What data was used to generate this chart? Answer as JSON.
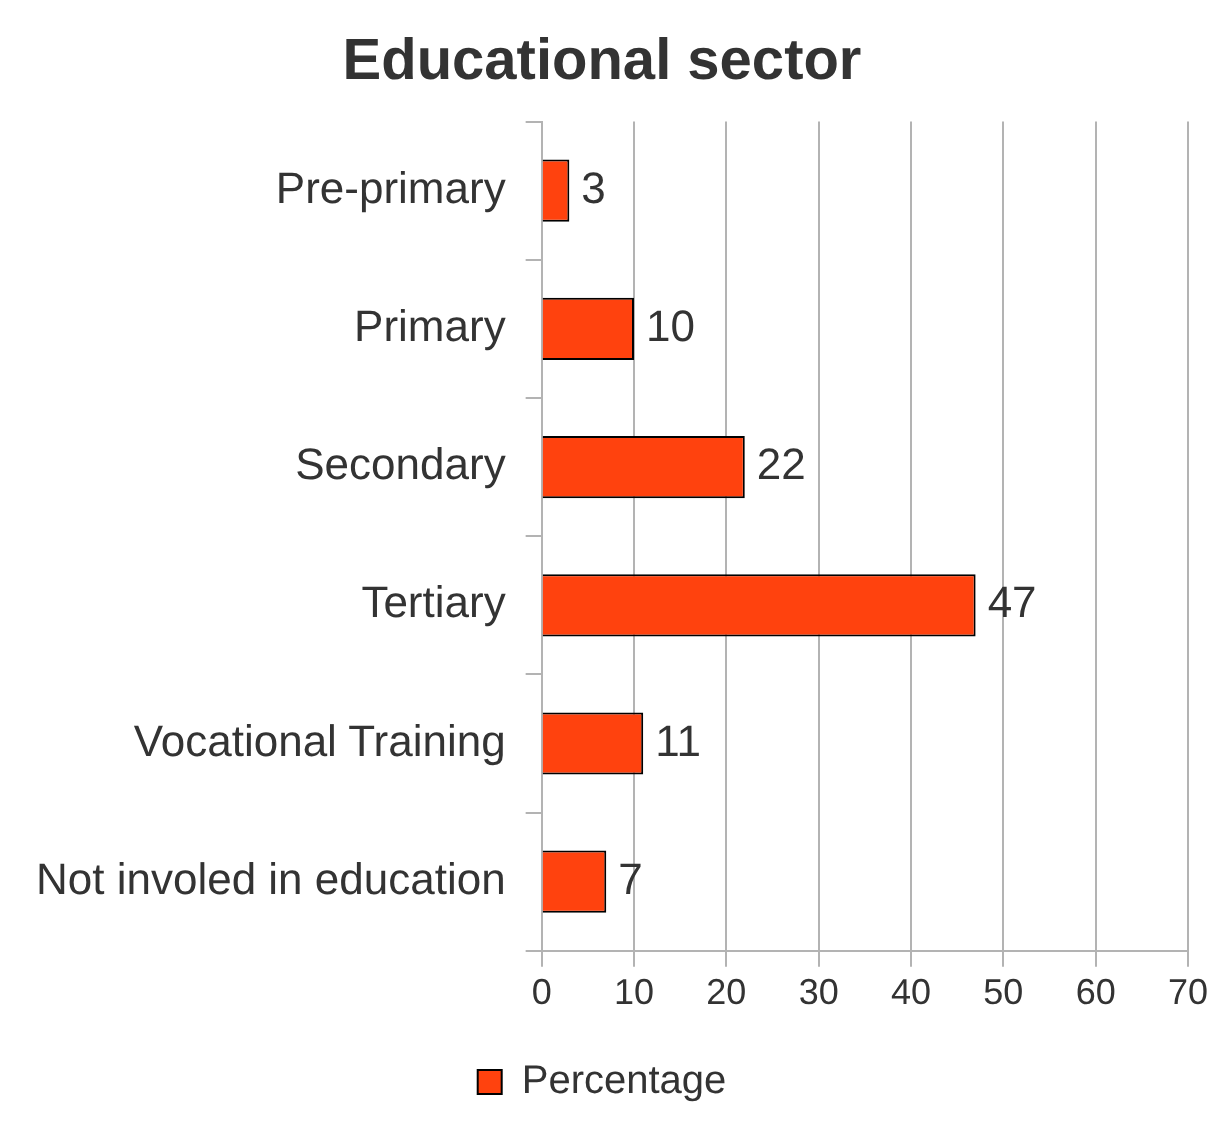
{
  "chart_data": {
    "type": "bar",
    "orientation": "horizontal",
    "title": "Educational sector",
    "categories": [
      "Pre-primary",
      "Primary",
      "Secondary",
      "Tertiary",
      "Vocational Training",
      "Not involed in education"
    ],
    "series": [
      {
        "name": "Percentage",
        "color": "#ff420e",
        "values": [
          3,
          10,
          22,
          47,
          11,
          7
        ]
      }
    ],
    "xlim": [
      0,
      70
    ],
    "xticks": [
      0,
      10,
      20,
      30,
      40,
      50,
      60,
      70
    ],
    "grid": "x",
    "legend": "bottom",
    "data_labels": true
  }
}
